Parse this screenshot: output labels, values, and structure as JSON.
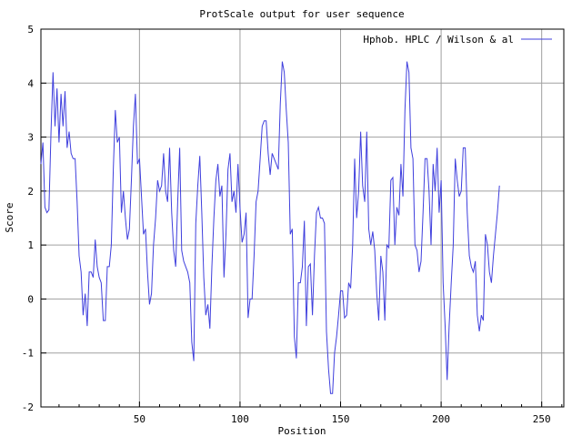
{
  "chart_data": {
    "type": "line",
    "title": "ProtScale output for user sequence",
    "xlabel": "Position",
    "ylabel": "Score",
    "xlim": [
      1,
      261
    ],
    "ylim": [
      -2,
      5
    ],
    "xticks": [
      "50",
      "100",
      "150",
      "200",
      "250"
    ],
    "yticks": [
      "-2",
      "-1",
      "0",
      "1",
      "2",
      "3",
      "4",
      "5"
    ],
    "grid": true,
    "legend_position": "top-right",
    "series": [
      {
        "name": "Hphob. HPLC / Wilson & al",
        "color": "#3f3fdd",
        "points": [
          [
            1,
            2.5
          ],
          [
            2,
            2.9
          ],
          [
            3,
            1.7
          ],
          [
            4,
            1.6
          ],
          [
            5,
            1.65
          ],
          [
            6,
            3.1
          ],
          [
            7,
            4.2
          ],
          [
            8,
            3.2
          ],
          [
            9,
            3.9
          ],
          [
            10,
            2.9
          ],
          [
            11,
            3.8
          ],
          [
            12,
            3.2
          ],
          [
            13,
            3.85
          ],
          [
            14,
            2.8
          ],
          [
            15,
            3.1
          ],
          [
            16,
            2.7
          ],
          [
            17,
            2.6
          ],
          [
            18,
            2.6
          ],
          [
            19,
            1.8
          ],
          [
            20,
            0.8
          ],
          [
            21,
            0.5
          ],
          [
            22,
            -0.3
          ],
          [
            23,
            0.1
          ],
          [
            24,
            -0.5
          ],
          [
            25,
            0.5
          ],
          [
            26,
            0.5
          ],
          [
            27,
            0.4
          ],
          [
            28,
            1.1
          ],
          [
            29,
            0.6
          ],
          [
            30,
            0.4
          ],
          [
            31,
            0.3
          ],
          [
            32,
            -0.4
          ],
          [
            33,
            -0.4
          ],
          [
            34,
            0.6
          ],
          [
            35,
            0.6
          ],
          [
            36,
            1.0
          ],
          [
            37,
            2.4
          ],
          [
            38,
            3.5
          ],
          [
            39,
            2.9
          ],
          [
            40,
            3.0
          ],
          [
            41,
            1.6
          ],
          [
            42,
            2.0
          ],
          [
            43,
            1.5
          ],
          [
            44,
            1.1
          ],
          [
            45,
            1.3
          ],
          [
            46,
            2.2
          ],
          [
            47,
            3.2
          ],
          [
            48,
            3.8
          ],
          [
            49,
            2.5
          ],
          [
            50,
            2.6
          ],
          [
            51,
            1.9
          ],
          [
            52,
            1.2
          ],
          [
            53,
            1.3
          ],
          [
            54,
            0.5
          ],
          [
            55,
            -0.1
          ],
          [
            56,
            0.1
          ],
          [
            57,
            1.0
          ],
          [
            58,
            1.5
          ],
          [
            59,
            2.2
          ],
          [
            60,
            2.0
          ],
          [
            61,
            2.1
          ],
          [
            62,
            2.7
          ],
          [
            63,
            2.0
          ],
          [
            64,
            1.8
          ],
          [
            65,
            2.8
          ],
          [
            66,
            1.6
          ],
          [
            67,
            0.9
          ],
          [
            68,
            0.6
          ],
          [
            69,
            1.8
          ],
          [
            70,
            2.8
          ],
          [
            71,
            0.9
          ],
          [
            72,
            0.7
          ],
          [
            73,
            0.6
          ],
          [
            74,
            0.5
          ],
          [
            75,
            0.3
          ],
          [
            76,
            -0.8
          ],
          [
            77,
            -1.15
          ],
          [
            78,
            1.4
          ],
          [
            79,
            2.1
          ],
          [
            80,
            2.65
          ],
          [
            81,
            1.6
          ],
          [
            82,
            0.4
          ],
          [
            83,
            -0.3
          ],
          [
            84,
            -0.1
          ],
          [
            85,
            -0.55
          ],
          [
            86,
            0.6
          ],
          [
            87,
            1.5
          ],
          [
            88,
            2.2
          ],
          [
            89,
            2.5
          ],
          [
            90,
            1.9
          ],
          [
            91,
            2.1
          ],
          [
            92,
            0.4
          ],
          [
            93,
            1.2
          ],
          [
            94,
            2.4
          ],
          [
            95,
            2.7
          ],
          [
            96,
            1.8
          ],
          [
            97,
            2.0
          ],
          [
            98,
            1.6
          ],
          [
            99,
            2.5
          ],
          [
            100,
            1.7
          ],
          [
            101,
            1.05
          ],
          [
            102,
            1.2
          ],
          [
            103,
            1.6
          ],
          [
            104,
            -0.35
          ],
          [
            105,
            0.0
          ],
          [
            106,
            0.0
          ],
          [
            107,
            0.8
          ],
          [
            108,
            1.8
          ],
          [
            109,
            2.0
          ],
          [
            110,
            2.6
          ],
          [
            111,
            3.2
          ],
          [
            112,
            3.3
          ],
          [
            113,
            3.3
          ],
          [
            114,
            2.7
          ],
          [
            115,
            2.3
          ],
          [
            116,
            2.7
          ],
          [
            117,
            2.6
          ],
          [
            118,
            2.5
          ],
          [
            119,
            2.4
          ],
          [
            120,
            3.6
          ],
          [
            121,
            4.4
          ],
          [
            122,
            4.2
          ],
          [
            123,
            3.5
          ],
          [
            124,
            2.9
          ],
          [
            125,
            1.2
          ],
          [
            126,
            1.3
          ],
          [
            127,
            -0.7
          ],
          [
            128,
            -1.1
          ],
          [
            129,
            0.3
          ],
          [
            130,
            0.3
          ],
          [
            131,
            0.6
          ],
          [
            132,
            1.45
          ],
          [
            133,
            -0.5
          ],
          [
            134,
            0.6
          ],
          [
            135,
            0.65
          ],
          [
            136,
            -0.3
          ],
          [
            137,
            0.8
          ],
          [
            138,
            1.6
          ],
          [
            139,
            1.7
          ],
          [
            140,
            1.5
          ],
          [
            141,
            1.5
          ],
          [
            142,
            1.4
          ],
          [
            143,
            -0.6
          ],
          [
            144,
            -1.3
          ],
          [
            145,
            -1.75
          ],
          [
            146,
            -1.75
          ],
          [
            147,
            -1.0
          ],
          [
            148,
            -0.7
          ],
          [
            149,
            -0.3
          ],
          [
            150,
            0.15
          ],
          [
            151,
            0.15
          ],
          [
            152,
            -0.35
          ],
          [
            153,
            -0.3
          ],
          [
            154,
            0.3
          ],
          [
            155,
            0.2
          ],
          [
            156,
            1.0
          ],
          [
            157,
            2.6
          ],
          [
            158,
            1.5
          ],
          [
            159,
            2.0
          ],
          [
            160,
            3.1
          ],
          [
            161,
            2.1
          ],
          [
            162,
            1.8
          ],
          [
            163,
            3.1
          ],
          [
            164,
            1.3
          ],
          [
            165,
            1.0
          ],
          [
            166,
            1.25
          ],
          [
            167,
            0.9
          ],
          [
            168,
            0.1
          ],
          [
            169,
            -0.4
          ],
          [
            170,
            0.8
          ],
          [
            171,
            0.5
          ],
          [
            172,
            -0.4
          ],
          [
            173,
            1.0
          ],
          [
            174,
            0.95
          ],
          [
            175,
            2.2
          ],
          [
            176,
            2.25
          ],
          [
            177,
            1.0
          ],
          [
            178,
            1.7
          ],
          [
            179,
            1.55
          ],
          [
            180,
            2.5
          ],
          [
            181,
            1.9
          ],
          [
            182,
            3.5
          ],
          [
            183,
            4.4
          ],
          [
            184,
            4.2
          ],
          [
            185,
            2.8
          ],
          [
            186,
            2.6
          ],
          [
            187,
            1.0
          ],
          [
            188,
            0.9
          ],
          [
            189,
            0.5
          ],
          [
            190,
            0.7
          ],
          [
            191,
            1.6
          ],
          [
            192,
            2.6
          ],
          [
            193,
            2.6
          ],
          [
            194,
            2.0
          ],
          [
            195,
            1.0
          ],
          [
            196,
            2.5
          ],
          [
            197,
            2.0
          ],
          [
            198,
            2.8
          ],
          [
            199,
            1.6
          ],
          [
            200,
            2.2
          ],
          [
            201,
            0.3
          ],
          [
            202,
            -0.5
          ],
          [
            203,
            -1.5
          ],
          [
            204,
            -0.5
          ],
          [
            205,
            0.3
          ],
          [
            206,
            1.0
          ],
          [
            207,
            2.6
          ],
          [
            208,
            2.2
          ],
          [
            209,
            1.9
          ],
          [
            210,
            2.0
          ],
          [
            211,
            2.8
          ],
          [
            212,
            2.8
          ],
          [
            213,
            1.6
          ],
          [
            214,
            0.8
          ],
          [
            215,
            0.6
          ],
          [
            216,
            0.5
          ],
          [
            217,
            0.7
          ],
          [
            218,
            -0.3
          ],
          [
            219,
            -0.6
          ],
          [
            220,
            -0.3
          ],
          [
            221,
            -0.4
          ],
          [
            222,
            1.2
          ],
          [
            223,
            1.0
          ],
          [
            224,
            0.5
          ],
          [
            225,
            0.3
          ],
          [
            226,
            0.8
          ],
          [
            227,
            1.2
          ],
          [
            228,
            1.6
          ],
          [
            229,
            2.1
          ]
        ]
      }
    ]
  }
}
